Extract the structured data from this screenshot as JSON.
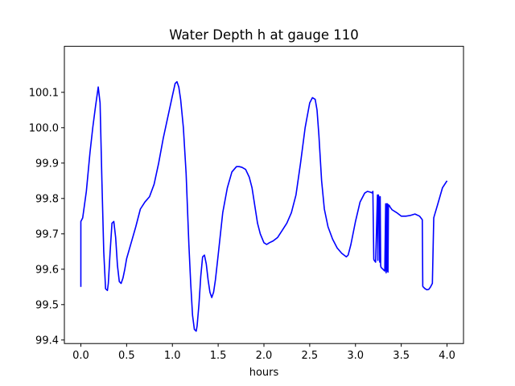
{
  "chart_data": {
    "type": "line",
    "title": "Water Depth h at gauge 110",
    "xlabel": "hours",
    "ylabel": "",
    "xlim": [
      -0.18,
      4.18
    ],
    "ylim": [
      99.39,
      100.23
    ],
    "xticks": [
      0.0,
      0.5,
      1.0,
      1.5,
      2.0,
      2.5,
      3.0,
      3.5,
      4.0
    ],
    "xtick_labels": [
      "0.0",
      "0.5",
      "1.0",
      "1.5",
      "2.0",
      "2.5",
      "3.0",
      "3.5",
      "4.0"
    ],
    "yticks": [
      99.4,
      99.5,
      99.6,
      99.7,
      99.8,
      99.9,
      100.0,
      100.1
    ],
    "ytick_labels": [
      "99.4",
      "99.5",
      "99.6",
      "99.7",
      "99.8",
      "99.9",
      "100.0",
      "100.1"
    ],
    "grid": false,
    "series": [
      {
        "color": "#0000ff",
        "x": [
          0.0,
          0.0,
          0.02,
          0.06,
          0.1,
          0.13,
          0.16,
          0.19,
          0.21,
          0.23,
          0.25,
          0.27,
          0.29,
          0.3,
          0.32,
          0.34,
          0.36,
          0.38,
          0.4,
          0.42,
          0.44,
          0.46,
          0.48,
          0.5,
          0.55,
          0.6,
          0.65,
          0.7,
          0.75,
          0.8,
          0.85,
          0.9,
          0.95,
          1.0,
          1.03,
          1.05,
          1.07,
          1.09,
          1.12,
          1.15,
          1.18,
          1.2,
          1.22,
          1.24,
          1.26,
          1.27,
          1.29,
          1.31,
          1.33,
          1.35,
          1.37,
          1.39,
          1.41,
          1.43,
          1.45,
          1.47,
          1.5,
          1.55,
          1.6,
          1.65,
          1.7,
          1.73,
          1.76,
          1.8,
          1.84,
          1.87,
          1.9,
          1.93,
          1.96,
          2.0,
          2.03,
          2.06,
          2.1,
          2.15,
          2.2,
          2.25,
          2.3,
          2.35,
          2.4,
          2.45,
          2.5,
          2.53,
          2.56,
          2.58,
          2.6,
          2.63,
          2.66,
          2.7,
          2.75,
          2.8,
          2.85,
          2.9,
          2.92,
          2.95,
          3.0,
          3.05,
          3.1,
          3.13,
          3.16,
          3.18,
          3.19,
          3.2,
          3.205,
          3.22,
          3.24,
          3.245,
          3.25,
          3.26,
          3.265,
          3.27,
          3.275,
          3.28,
          3.3,
          3.32,
          3.33,
          3.335,
          3.34,
          3.345,
          3.35,
          3.355,
          3.36,
          3.37,
          3.38,
          3.4,
          3.45,
          3.5,
          3.55,
          3.6,
          3.65,
          3.7,
          3.73,
          3.735,
          3.74,
          3.76,
          3.78,
          3.8,
          3.82,
          3.84,
          3.855,
          3.86,
          3.9,
          3.95,
          4.0
        ],
        "y": [
          99.55,
          99.735,
          99.745,
          99.82,
          99.93,
          100.0,
          100.06,
          100.115,
          100.07,
          99.85,
          99.65,
          99.545,
          99.54,
          99.56,
          99.65,
          99.73,
          99.735,
          99.69,
          99.61,
          99.565,
          99.56,
          99.575,
          99.6,
          99.63,
          99.675,
          99.72,
          99.77,
          99.79,
          99.805,
          99.84,
          99.9,
          99.97,
          100.03,
          100.09,
          100.125,
          100.13,
          100.115,
          100.08,
          100.0,
          99.87,
          99.67,
          99.56,
          99.47,
          99.43,
          99.425,
          99.44,
          99.5,
          99.58,
          99.635,
          99.64,
          99.615,
          99.57,
          99.535,
          99.52,
          99.535,
          99.57,
          99.64,
          99.76,
          99.83,
          99.875,
          99.89,
          99.89,
          99.888,
          99.882,
          99.86,
          99.83,
          99.78,
          99.73,
          99.7,
          99.675,
          99.67,
          99.675,
          99.68,
          99.69,
          99.71,
          99.73,
          99.76,
          99.81,
          99.9,
          100.0,
          100.07,
          100.085,
          100.08,
          100.05,
          99.98,
          99.85,
          99.77,
          99.72,
          99.685,
          99.66,
          99.645,
          99.635,
          99.64,
          99.67,
          99.735,
          99.79,
          99.815,
          99.82,
          99.818,
          99.816,
          99.82,
          99.628,
          99.625,
          99.62,
          99.81,
          99.625,
          99.81,
          99.8,
          99.62,
          99.805,
          99.61,
          99.605,
          99.6,
          99.595,
          99.785,
          99.59,
          99.785,
          99.595,
          99.785,
          99.592,
          99.782,
          99.78,
          99.775,
          99.768,
          99.76,
          99.75,
          99.75,
          99.752,
          99.756,
          99.75,
          99.74,
          99.552,
          99.55,
          99.545,
          99.542,
          99.543,
          99.55,
          99.56,
          99.745,
          99.75,
          99.785,
          99.83,
          99.85
        ]
      }
    ]
  }
}
